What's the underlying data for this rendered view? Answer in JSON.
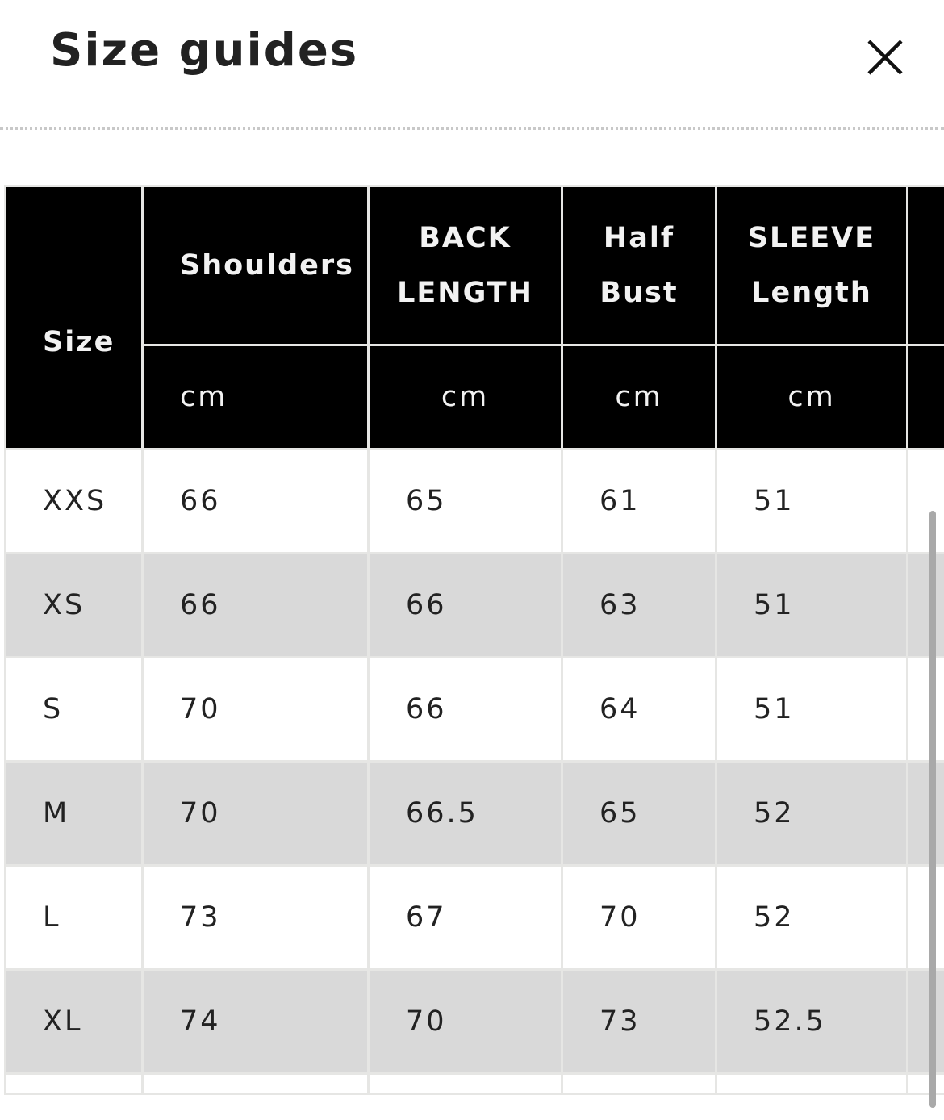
{
  "modal": {
    "title": "Size guides",
    "close_icon": "close-icon"
  },
  "table": {
    "headers": [
      {
        "label": "Size"
      },
      {
        "line1": "Shoulders",
        "unit": "cm"
      },
      {
        "line1": "BACK",
        "line2": "LENGTH",
        "unit": "cm"
      },
      {
        "line1": "Half",
        "line2": "Bust",
        "unit": "cm"
      },
      {
        "line1": "SLEEVE",
        "line2": "Length",
        "unit": "cm"
      }
    ],
    "rows": [
      [
        "XXS",
        "66",
        "65",
        "61",
        "51"
      ],
      [
        "XS",
        "66",
        "66",
        "63",
        "51"
      ],
      [
        "S",
        "70",
        "66",
        "64",
        "51"
      ],
      [
        "M",
        "70",
        "66.5",
        "65",
        "52"
      ],
      [
        "L",
        "73",
        "67",
        "70",
        "52"
      ],
      [
        "XL",
        "74",
        "70",
        "73",
        "52.5"
      ]
    ]
  },
  "colors": {
    "header_bg": "#000000",
    "alt_row_bg": "#d9d9d9",
    "border": "#e6e6e4"
  }
}
